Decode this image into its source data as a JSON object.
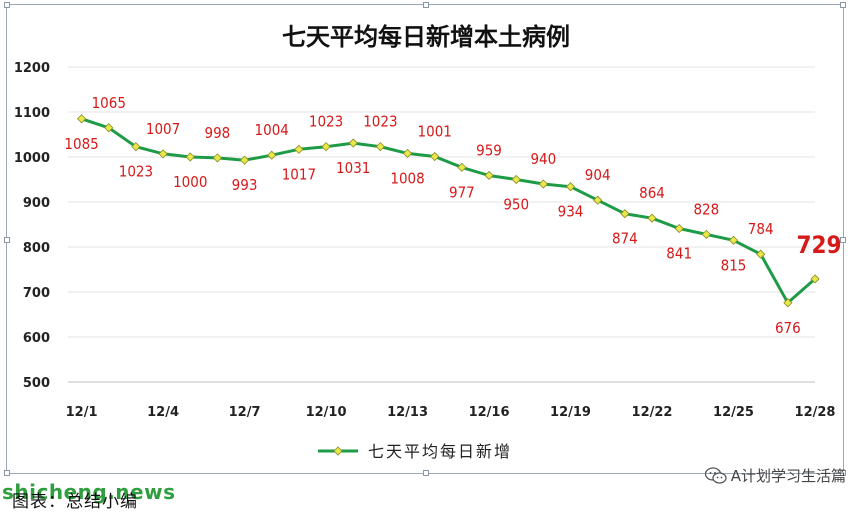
{
  "chart_data": {
    "type": "line",
    "title": "七天平均每日新增本土病例",
    "x": [
      "12/1",
      "12/2",
      "12/3",
      "12/4",
      "12/5",
      "12/6",
      "12/7",
      "12/8",
      "12/9",
      "12/10",
      "12/11",
      "12/12",
      "12/13",
      "12/14",
      "12/15",
      "12/16",
      "12/17",
      "12/18",
      "12/19",
      "12/20",
      "12/21",
      "12/22",
      "12/23",
      "12/24",
      "12/25",
      "12/26",
      "12/27",
      "12/28"
    ],
    "x_tick_labels": [
      "12/1",
      "12/4",
      "12/7",
      "12/10",
      "12/13",
      "12/16",
      "12/19",
      "12/22",
      "12/25",
      "12/28"
    ],
    "series": [
      {
        "name": "七天平均每日新增",
        "values": [
          1085,
          1065,
          1023,
          1007,
          1000,
          998,
          993,
          1004,
          1017,
          1023,
          1031,
          1023,
          1008,
          1001,
          977,
          959,
          950,
          940,
          934,
          904,
          874,
          864,
          841,
          828,
          815,
          784,
          676,
          729
        ],
        "color": "#1e9b47"
      }
    ],
    "ylim": [
      500,
      1200
    ],
    "yticks": [
      500,
      600,
      700,
      800,
      900,
      1000,
      1100,
      1200
    ],
    "xlabel": "",
    "ylabel": "",
    "grid": true,
    "legend": "bottom",
    "label_color": "#d61a1a",
    "marker_color": "#e8e84a",
    "highlight_last": true
  },
  "footer": {
    "caption": "图表：总结小编",
    "watermark_site": "shicheng.news",
    "watermark_account": "A计划学习生活篇"
  }
}
